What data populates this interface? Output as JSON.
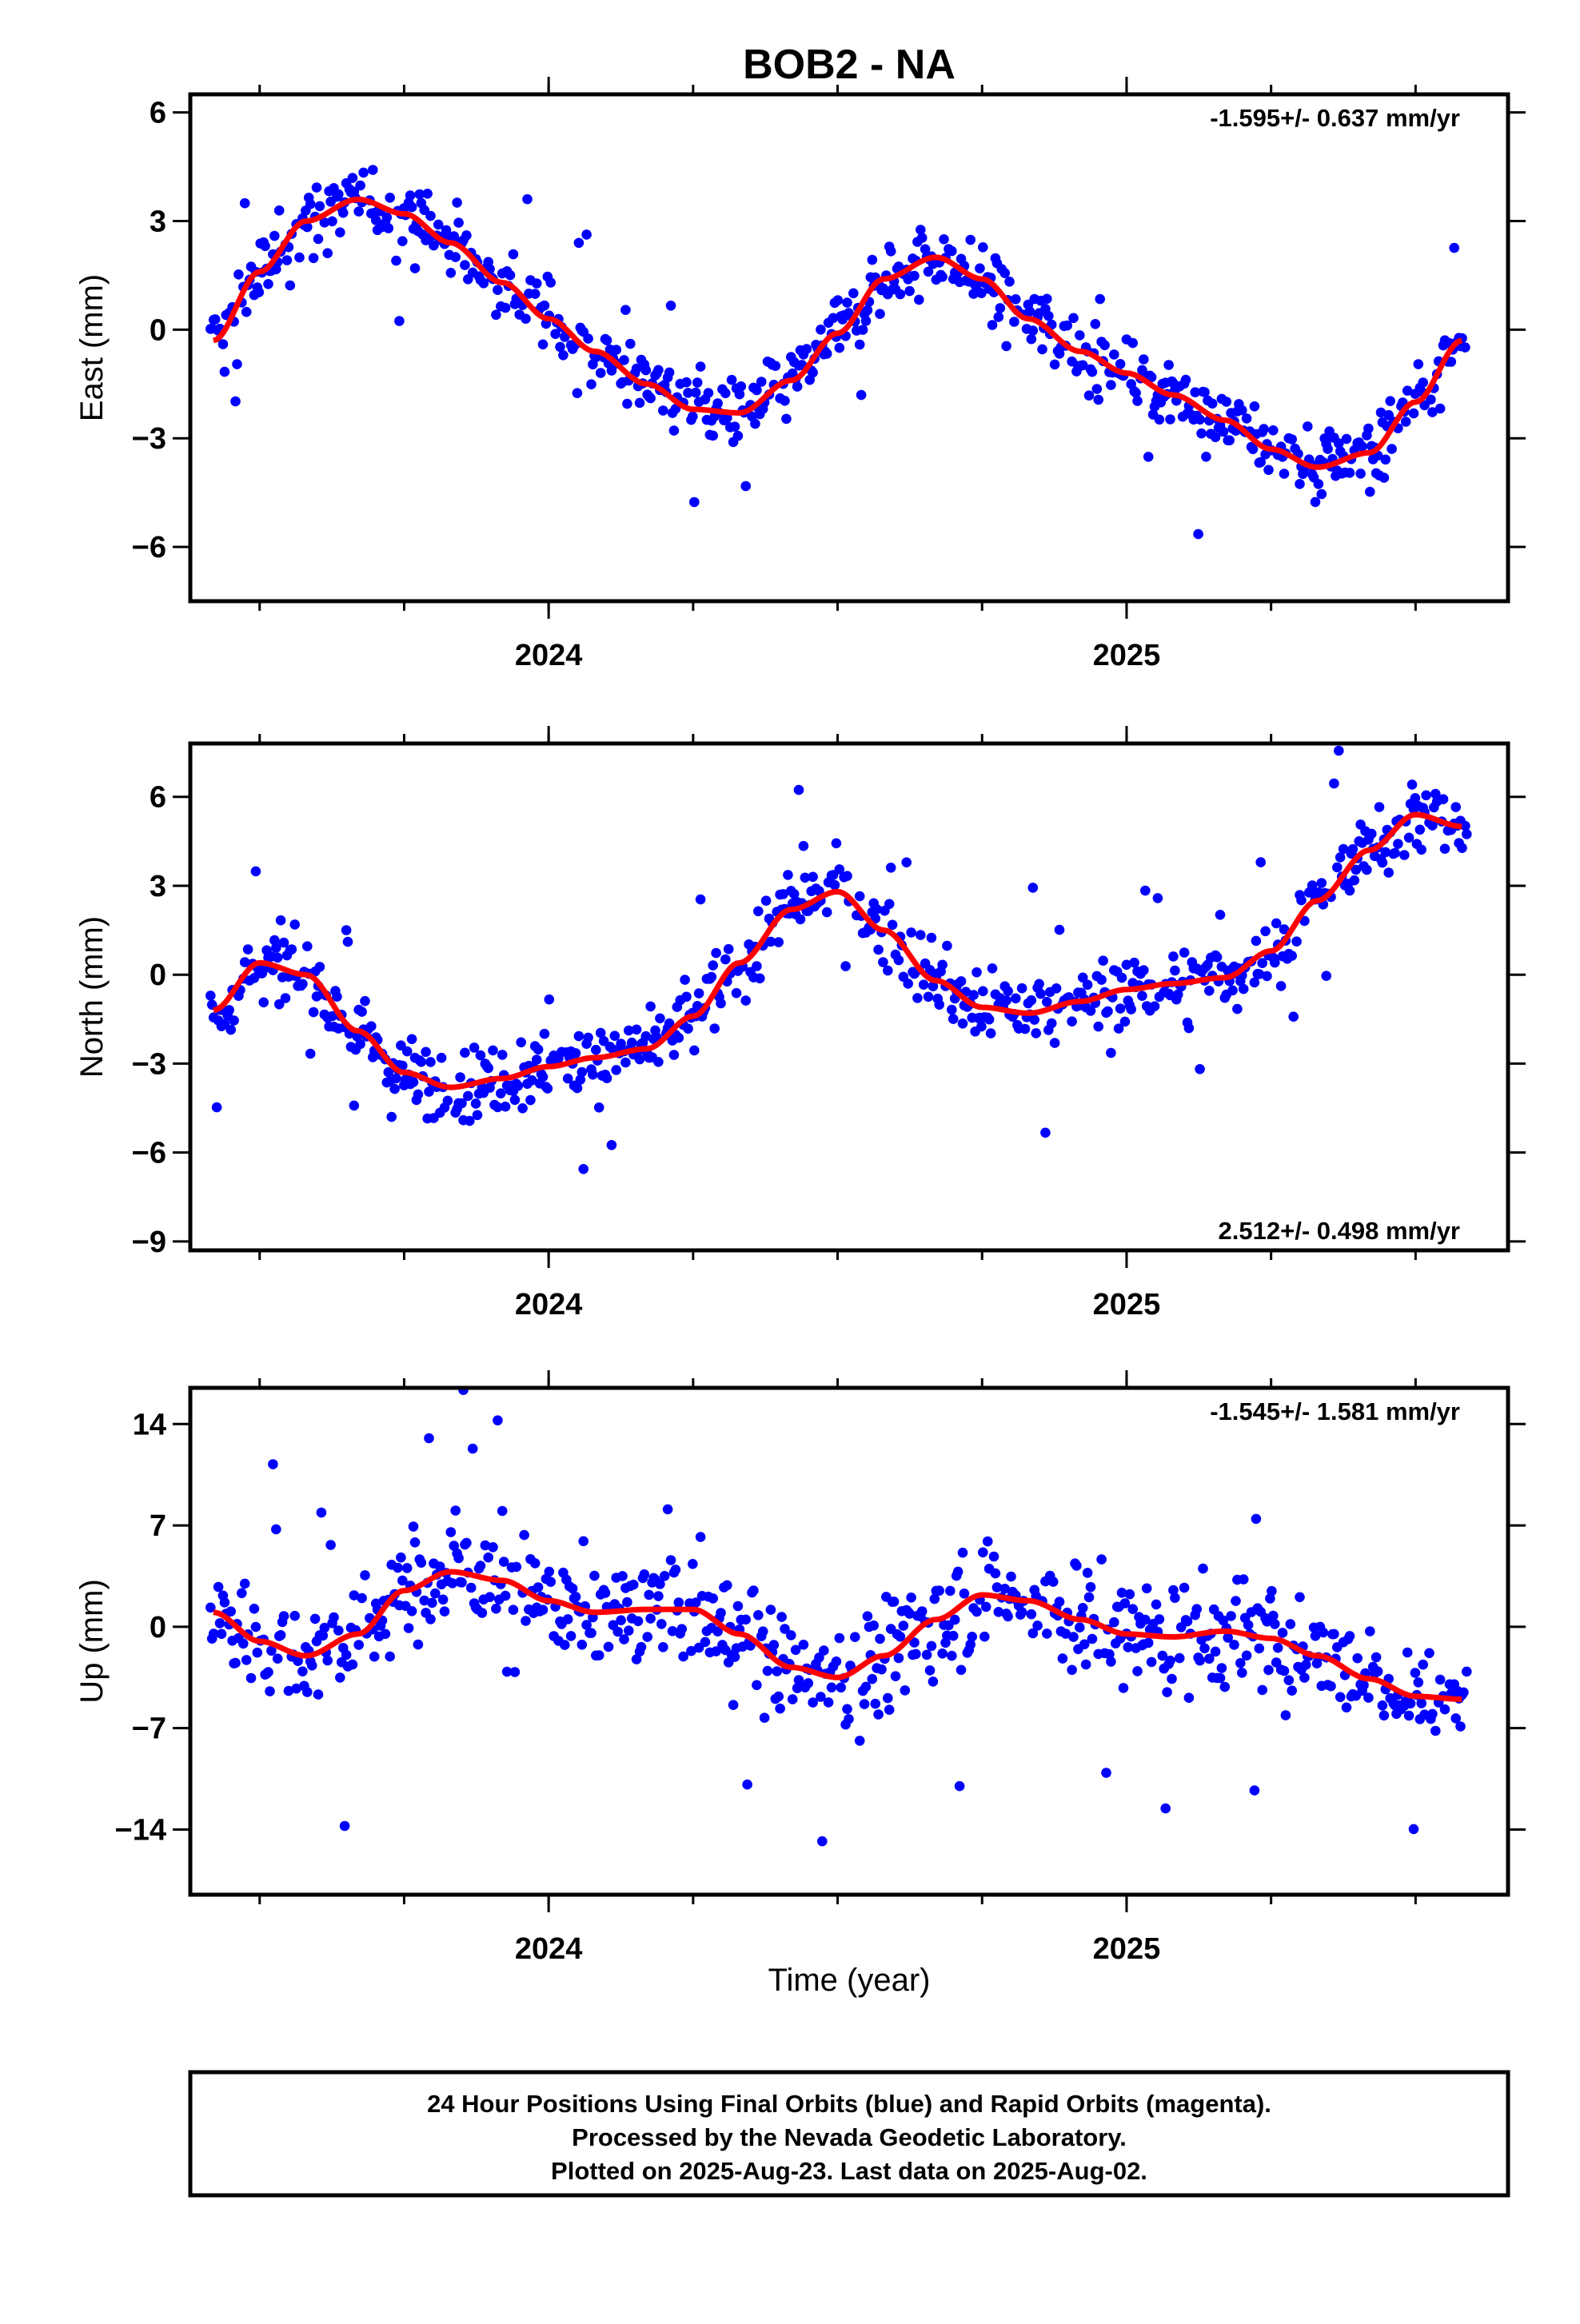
{
  "title": "BOB2 - NA",
  "xlabel": "Time (year)",
  "colors": {
    "final_orbits": "#0000ff",
    "fit_line": "#ff0000",
    "axes": "#000000"
  },
  "caption": {
    "line1": "24 Hour Positions Using Final Orbits (blue) and Rapid Orbits (magenta).",
    "line2": "Processed by the Nevada Geodetic Laboratory.",
    "line3": "Plotted on 2025-Aug-23. Last data on 2025-Aug-02."
  },
  "chart_data": [
    {
      "type": "scatter",
      "ylabel": "East (mm)",
      "rate_label": "-1.595+/- 0.637 mm/yr",
      "rate_position": "top-right",
      "xlim": [
        2023.38,
        2025.66
      ],
      "ylim": [
        -7.5,
        6.5
      ],
      "xticks": [
        2024,
        2025
      ],
      "yticks": [
        6,
        3,
        0,
        -3,
        -6
      ],
      "fit": {
        "x": [
          2023.42,
          2023.5,
          2023.58,
          2023.67,
          2023.75,
          2023.83,
          2023.92,
          2024.0,
          2024.08,
          2024.17,
          2024.25,
          2024.33,
          2024.42,
          2024.5,
          2024.58,
          2024.67,
          2024.75,
          2024.83,
          2024.92,
          2025.0,
          2025.08,
          2025.17,
          2025.25,
          2025.33,
          2025.42,
          2025.5,
          2025.58
        ],
        "y": [
          -0.3,
          1.6,
          3.0,
          3.6,
          3.2,
          2.4,
          1.3,
          0.3,
          -0.6,
          -1.5,
          -2.2,
          -2.3,
          -1.4,
          -0.1,
          1.4,
          2.0,
          1.4,
          0.3,
          -0.6,
          -1.2,
          -1.8,
          -2.5,
          -3.3,
          -3.8,
          -3.4,
          -2.0,
          -0.3
        ]
      },
      "trend": {
        "t0": 2023.42,
        "y0": 1.8,
        "slope": -1.595,
        "noise": 1.0
      }
    },
    {
      "type": "scatter",
      "ylabel": "North (mm)",
      "rate_label": "2.512+/- 0.498 mm/yr",
      "rate_position": "bottom-right",
      "xlim": [
        2023.38,
        2025.66
      ],
      "ylim": [
        -9.3,
        7.8
      ],
      "xticks": [
        2024,
        2025
      ],
      "yticks": [
        6,
        3,
        0,
        -3,
        -6,
        -9
      ],
      "fit": {
        "x": [
          2023.42,
          2023.5,
          2023.58,
          2023.67,
          2023.75,
          2023.83,
          2023.92,
          2024.0,
          2024.08,
          2024.17,
          2024.25,
          2024.33,
          2024.42,
          2024.5,
          2024.58,
          2024.67,
          2024.75,
          2024.83,
          2024.92,
          2025.0,
          2025.08,
          2025.17,
          2025.25,
          2025.33,
          2025.42,
          2025.5,
          2025.58
        ],
        "y": [
          -1.2,
          0.4,
          0.0,
          -1.9,
          -3.3,
          -3.8,
          -3.5,
          -3.1,
          -2.8,
          -2.5,
          -1.4,
          0.4,
          2.2,
          2.8,
          1.5,
          -0.2,
          -1.1,
          -1.3,
          -0.9,
          -0.5,
          -0.3,
          -0.1,
          0.8,
          2.5,
          4.2,
          5.4,
          5.0
        ]
      },
      "trend": {
        "t0": 2023.42,
        "y0": -3.0,
        "slope": 2.512,
        "noise": 1.2
      }
    },
    {
      "type": "scatter",
      "ylabel": "Up (mm)",
      "rate_label": "-1.545+/- 1.581 mm/yr",
      "rate_position": "top-right",
      "xlim": [
        2023.38,
        2025.66
      ],
      "ylim": [
        -18.5,
        16.5
      ],
      "xticks": [
        2024,
        2025
      ],
      "yticks": [
        14,
        7,
        0,
        -7,
        -14
      ],
      "fit": {
        "x": [
          2023.42,
          2023.5,
          2023.58,
          2023.67,
          2023.75,
          2023.83,
          2023.92,
          2024.0,
          2024.08,
          2024.17,
          2024.25,
          2024.33,
          2024.42,
          2024.5,
          2024.58,
          2024.67,
          2024.75,
          2024.83,
          2024.92,
          2025.0,
          2025.08,
          2025.17,
          2025.25,
          2025.33,
          2025.42,
          2025.5,
          2025.58
        ],
        "y": [
          1.0,
          -1.0,
          -2.0,
          -0.5,
          2.5,
          3.8,
          3.2,
          1.8,
          1.0,
          1.2,
          1.2,
          -0.5,
          -2.8,
          -3.5,
          -2.0,
          0.5,
          2.2,
          1.8,
          0.5,
          -0.5,
          -0.7,
          -0.3,
          -0.8,
          -2.0,
          -3.6,
          -4.8,
          -5.0
        ]
      },
      "trend": {
        "t0": 2023.42,
        "y0": 1.5,
        "slope": -1.545,
        "noise": 3.8
      }
    }
  ]
}
